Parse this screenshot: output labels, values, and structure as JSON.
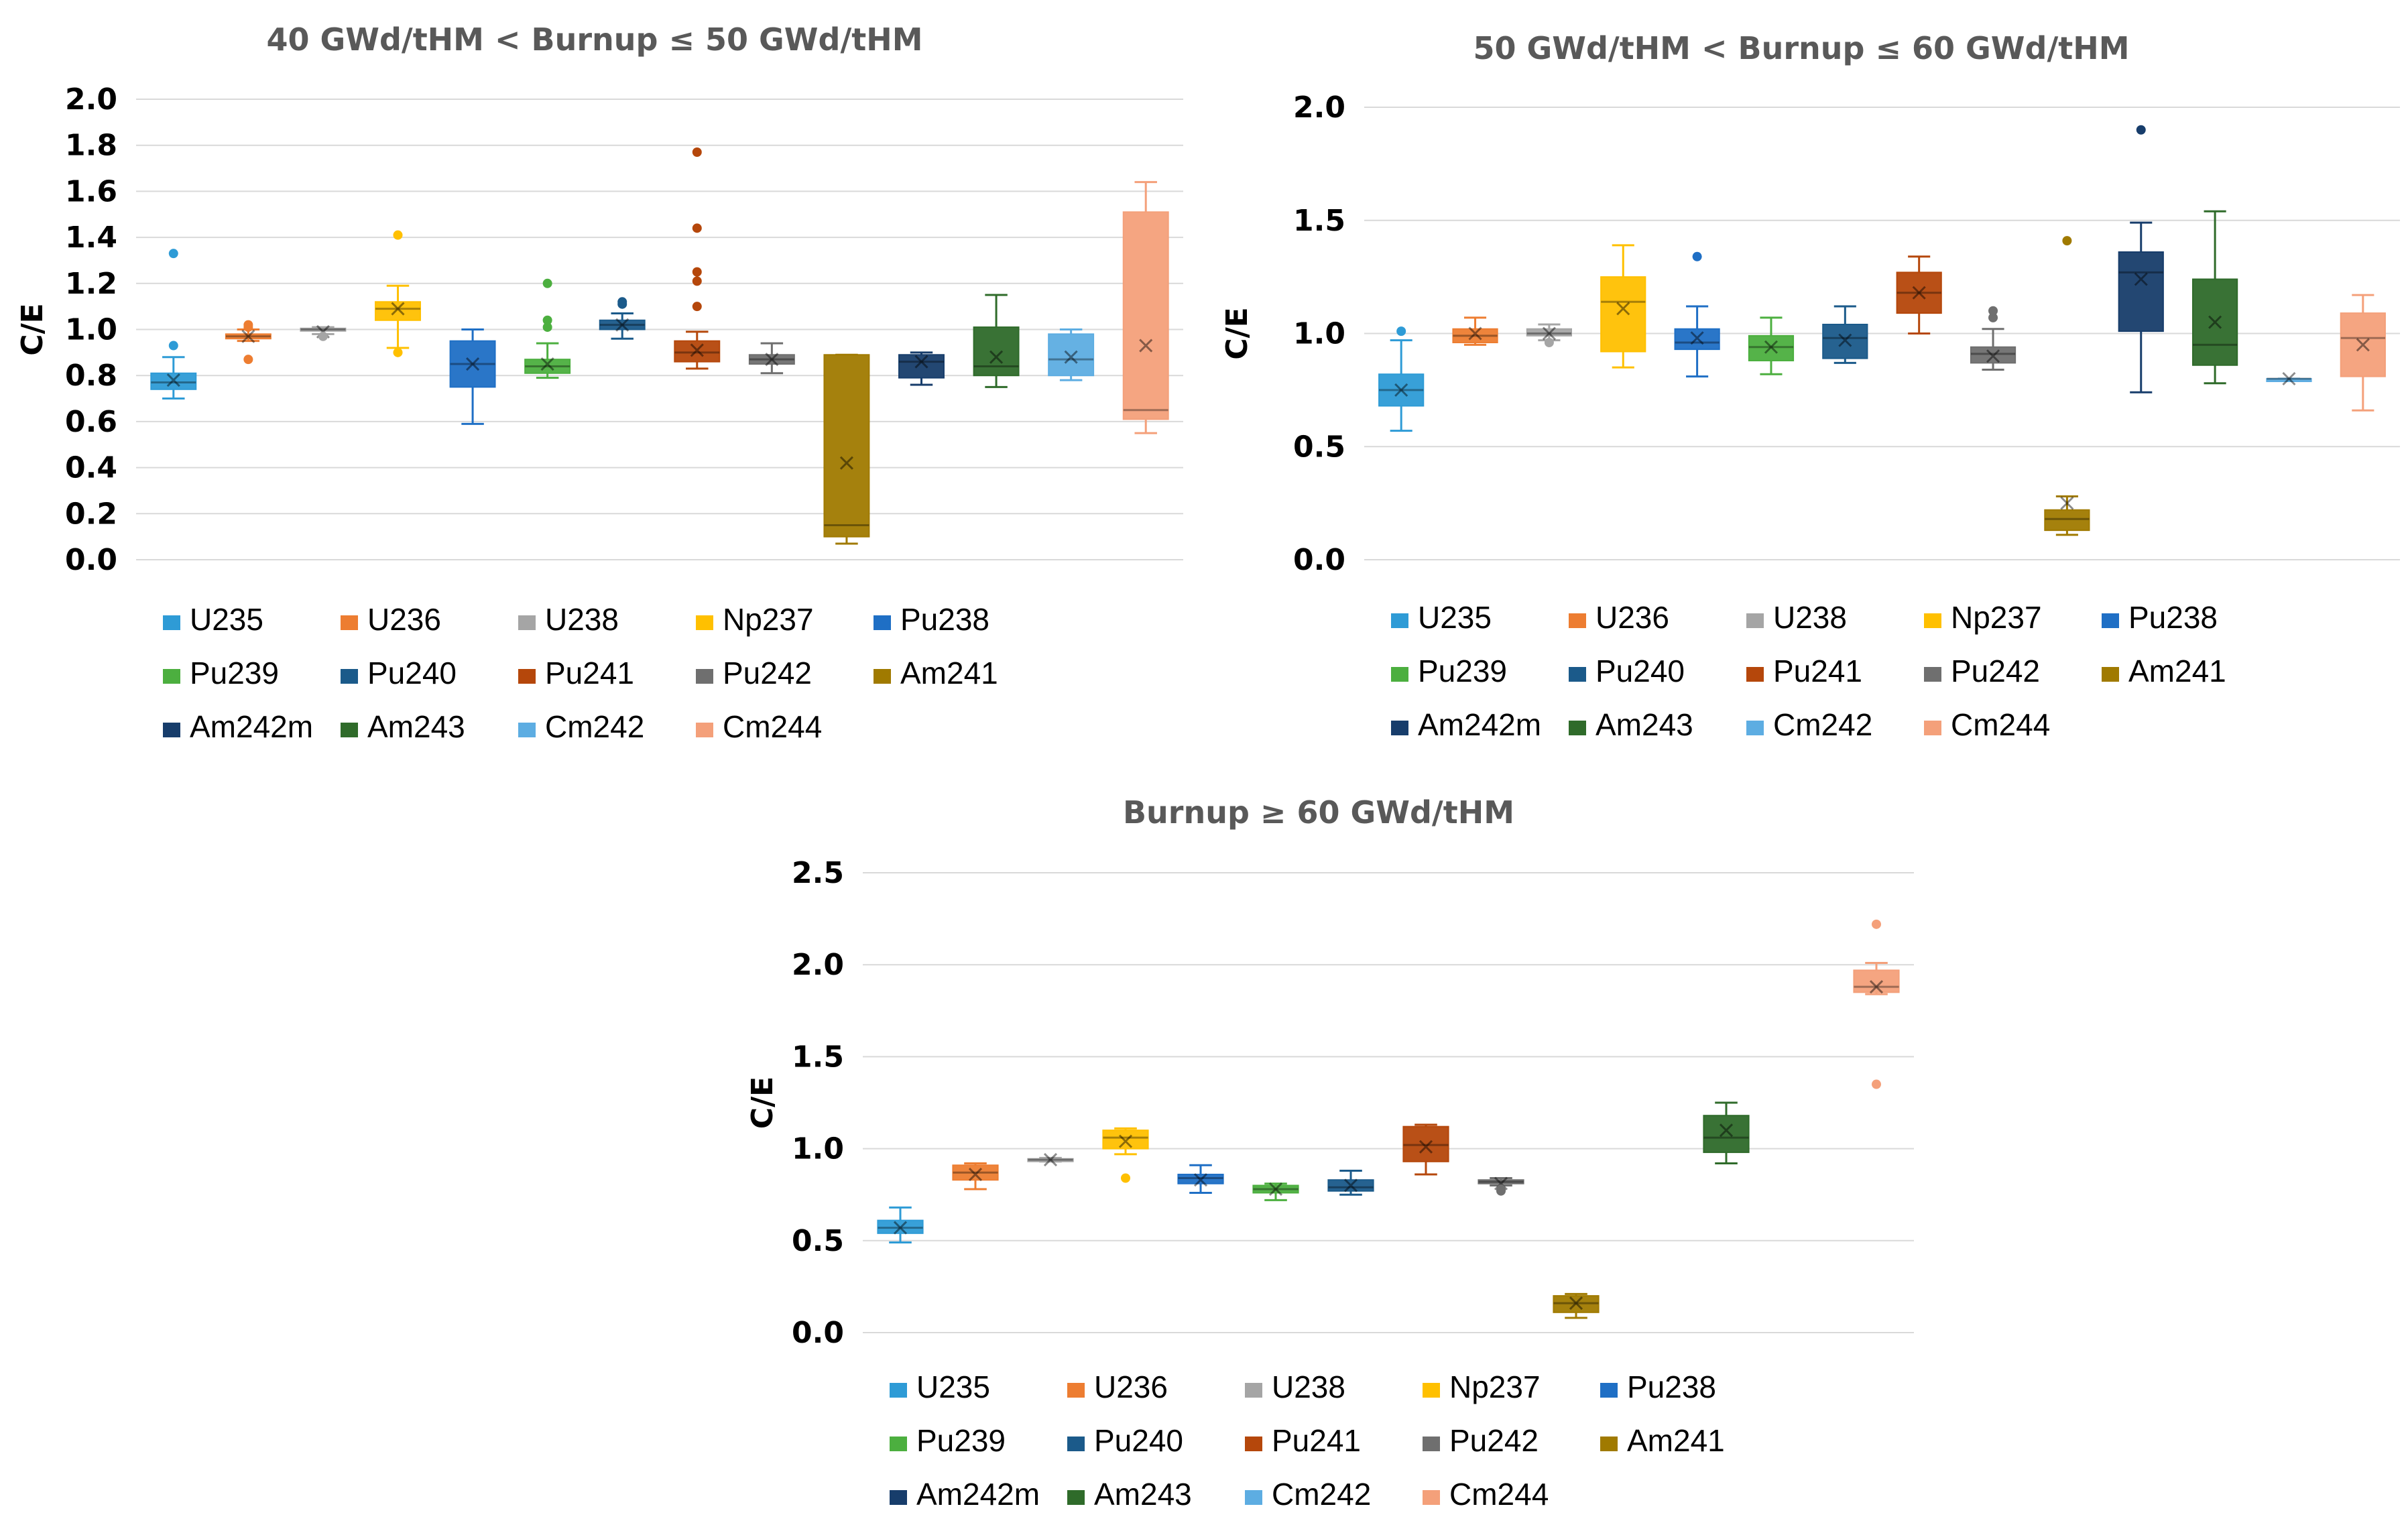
{
  "chart_data": [
    {
      "type": "box",
      "title": "40 GWd/tHM < Burnup ≤ 50 GWd/tHM",
      "ylabel": "C/E",
      "ylim": [
        0,
        2.0
      ],
      "yticks": [
        "0.0",
        "0.2",
        "0.4",
        "0.6",
        "0.8",
        "1.0",
        "1.2",
        "1.4",
        "1.6",
        "1.8",
        "2.0"
      ],
      "legend_position": "bottom",
      "series": [
        {
          "name": "U235",
          "color": "#2E9BD6",
          "min": 0.7,
          "q1": 0.74,
          "median": 0.77,
          "q3": 0.81,
          "max": 0.88,
          "mean": 0.78,
          "outliers": [
            0.93,
            1.33
          ]
        },
        {
          "name": "U236",
          "color": "#ED7D31",
          "min": 0.95,
          "q1": 0.96,
          "median": 0.97,
          "q3": 0.98,
          "max": 1.0,
          "mean": 0.97,
          "outliers": [
            0.87,
            1.01,
            1.02
          ]
        },
        {
          "name": "U238",
          "color": "#A5A5A5",
          "min": 0.98,
          "q1": 0.995,
          "median": 1.0,
          "q3": 1.005,
          "max": 1.01,
          "mean": 0.99,
          "outliers": [
            0.97
          ]
        },
        {
          "name": "Np237",
          "color": "#FFC000",
          "min": 0.92,
          "q1": 1.04,
          "median": 1.09,
          "q3": 1.12,
          "max": 1.19,
          "mean": 1.09,
          "outliers": [
            0.9,
            1.41
          ]
        },
        {
          "name": "Pu238",
          "color": "#1F6FC5",
          "min": 0.59,
          "q1": 0.75,
          "median": 0.85,
          "q3": 0.95,
          "max": 1.0,
          "mean": 0.85,
          "outliers": []
        },
        {
          "name": "Pu239",
          "color": "#4CAF3F",
          "min": 0.79,
          "q1": 0.81,
          "median": 0.84,
          "q3": 0.87,
          "max": 0.94,
          "mean": 0.85,
          "outliers": [
            1.01,
            1.04,
            1.2
          ]
        },
        {
          "name": "Pu240",
          "color": "#1B5A8A",
          "min": 0.96,
          "q1": 1.0,
          "median": 1.02,
          "q3": 1.04,
          "max": 1.07,
          "mean": 1.02,
          "outliers": [
            1.11,
            1.12
          ]
        },
        {
          "name": "Pu241",
          "color": "#B5470B",
          "min": 0.83,
          "q1": 0.86,
          "median": 0.9,
          "q3": 0.95,
          "max": 0.99,
          "mean": 0.91,
          "outliers": [
            1.1,
            1.21,
            1.25,
            1.44,
            1.77
          ]
        },
        {
          "name": "Pu242",
          "color": "#6F6F6F",
          "min": 0.81,
          "q1": 0.85,
          "median": 0.87,
          "q3": 0.89,
          "max": 0.94,
          "mean": 0.87,
          "outliers": []
        },
        {
          "name": "Am241",
          "color": "#A07A00",
          "min": 0.07,
          "q1": 0.1,
          "median": 0.15,
          "q3": 0.89,
          "max": 0.89,
          "mean": 0.42,
          "outliers": []
        },
        {
          "name": "Am242m",
          "color": "#173D6B",
          "min": 0.76,
          "q1": 0.79,
          "median": 0.86,
          "q3": 0.89,
          "max": 0.9,
          "mean": 0.86,
          "outliers": []
        },
        {
          "name": "Am243",
          "color": "#2F6B2A",
          "min": 0.75,
          "q1": 0.8,
          "median": 0.84,
          "q3": 1.01,
          "max": 1.15,
          "mean": 0.88,
          "outliers": []
        },
        {
          "name": "Cm242",
          "color": "#5DADE2",
          "min": 0.78,
          "q1": 0.8,
          "median": 0.87,
          "q3": 0.98,
          "max": 1.0,
          "mean": 0.88,
          "outliers": []
        },
        {
          "name": "Cm244",
          "color": "#F4A07A",
          "min": 0.55,
          "q1": 0.61,
          "median": 0.65,
          "q3": 1.51,
          "max": 1.64,
          "mean": 0.93,
          "outliers": []
        }
      ]
    },
    {
      "type": "box",
      "title": "50 GWd/tHM < Burnup ≤ 60 GWd/tHM",
      "ylabel": "C/E",
      "ylim": [
        0,
        2.0
      ],
      "yticks": [
        "0.0",
        "0.5",
        "1.0",
        "1.5",
        "2.0"
      ],
      "legend_position": "bottom",
      "series": [
        {
          "name": "U235",
          "color": "#2E9BD6",
          "min": 0.57,
          "q1": 0.68,
          "median": 0.75,
          "q3": 0.82,
          "max": 0.97,
          "mean": 0.75,
          "outliers": [
            1.01
          ]
        },
        {
          "name": "U236",
          "color": "#ED7D31",
          "min": 0.95,
          "q1": 0.96,
          "median": 0.99,
          "q3": 1.02,
          "max": 1.07,
          "mean": 1.0,
          "outliers": []
        },
        {
          "name": "U238",
          "color": "#A5A5A5",
          "min": 0.97,
          "q1": 0.99,
          "median": 1.0,
          "q3": 1.02,
          "max": 1.04,
          "mean": 1.0,
          "outliers": [
            0.96
          ]
        },
        {
          "name": "Np237",
          "color": "#FFC000",
          "min": 0.85,
          "q1": 0.92,
          "median": 1.14,
          "q3": 1.25,
          "max": 1.39,
          "mean": 1.11,
          "outliers": []
        },
        {
          "name": "Pu238",
          "color": "#1F6FC5",
          "min": 0.81,
          "q1": 0.93,
          "median": 0.96,
          "q3": 1.02,
          "max": 1.12,
          "mean": 0.98,
          "outliers": [
            1.34
          ]
        },
        {
          "name": "Pu239",
          "color": "#4CAF3F",
          "min": 0.82,
          "q1": 0.88,
          "median": 0.94,
          "q3": 0.99,
          "max": 1.07,
          "mean": 0.94,
          "outliers": []
        },
        {
          "name": "Pu240",
          "color": "#1B5A8A",
          "min": 0.87,
          "q1": 0.89,
          "median": 0.98,
          "q3": 1.04,
          "max": 1.12,
          "mean": 0.97,
          "outliers": []
        },
        {
          "name": "Pu241",
          "color": "#B5470B",
          "min": 1.0,
          "q1": 1.09,
          "median": 1.18,
          "q3": 1.27,
          "max": 1.34,
          "mean": 1.18,
          "outliers": []
        },
        {
          "name": "Pu242",
          "color": "#6F6F6F",
          "min": 0.84,
          "q1": 0.87,
          "median": 0.91,
          "q3": 0.94,
          "max": 1.02,
          "mean": 0.9,
          "outliers": [
            1.07,
            1.1
          ]
        },
        {
          "name": "Am241",
          "color": "#A07A00",
          "min": 0.11,
          "q1": 0.13,
          "median": 0.18,
          "q3": 0.22,
          "max": 0.28,
          "mean": 0.25,
          "outliers": [
            1.41
          ]
        },
        {
          "name": "Am242m",
          "color": "#173D6B",
          "min": 0.74,
          "q1": 1.01,
          "median": 1.27,
          "q3": 1.36,
          "max": 1.49,
          "mean": 1.24,
          "outliers": [
            1.9
          ]
        },
        {
          "name": "Am243",
          "color": "#2F6B2A",
          "min": 0.78,
          "q1": 0.86,
          "median": 0.95,
          "q3": 1.24,
          "max": 1.54,
          "mean": 1.05,
          "outliers": []
        },
        {
          "name": "Cm242",
          "color": "#5DADE2",
          "min": 0.8,
          "q1": 0.8,
          "median": 0.8,
          "q3": 0.8,
          "max": 0.8,
          "mean": 0.8,
          "outliers": []
        },
        {
          "name": "Cm244",
          "color": "#F4A07A",
          "min": 0.66,
          "q1": 0.81,
          "median": 0.98,
          "q3": 1.09,
          "max": 1.17,
          "mean": 0.95,
          "outliers": []
        }
      ]
    },
    {
      "type": "box",
      "title": "Burnup ≥ 60 GWd/tHM",
      "ylabel": "C/E",
      "ylim": [
        0,
        2.5
      ],
      "yticks": [
        "0.0",
        "0.5",
        "1.0",
        "1.5",
        "2.0",
        "2.5"
      ],
      "legend_position": "bottom",
      "series": [
        {
          "name": "U235",
          "color": "#2E9BD6",
          "min": 0.49,
          "q1": 0.54,
          "median": 0.57,
          "q3": 0.61,
          "max": 0.68,
          "mean": 0.57,
          "outliers": []
        },
        {
          "name": "U236",
          "color": "#ED7D31",
          "min": 0.78,
          "q1": 0.83,
          "median": 0.87,
          "q3": 0.91,
          "max": 0.92,
          "mean": 0.86,
          "outliers": []
        },
        {
          "name": "U238",
          "color": "#A5A5A5",
          "min": 0.93,
          "q1": 0.935,
          "median": 0.94,
          "q3": 0.945,
          "max": 0.95,
          "mean": 0.94,
          "outliers": []
        },
        {
          "name": "Np237",
          "color": "#FFC000",
          "min": 0.97,
          "q1": 1.0,
          "median": 1.06,
          "q3": 1.1,
          "max": 1.11,
          "mean": 1.04,
          "outliers": [
            0.84
          ]
        },
        {
          "name": "Pu238",
          "color": "#1F6FC5",
          "min": 0.76,
          "q1": 0.81,
          "median": 0.84,
          "q3": 0.86,
          "max": 0.91,
          "mean": 0.83,
          "outliers": []
        },
        {
          "name": "Pu239",
          "color": "#4CAF3F",
          "min": 0.72,
          "q1": 0.76,
          "median": 0.78,
          "q3": 0.8,
          "max": 0.81,
          "mean": 0.78,
          "outliers": []
        },
        {
          "name": "Pu240",
          "color": "#1B5A8A",
          "min": 0.75,
          "q1": 0.77,
          "median": 0.79,
          "q3": 0.83,
          "max": 0.88,
          "mean": 0.8,
          "outliers": []
        },
        {
          "name": "Pu241",
          "color": "#B5470B",
          "min": 0.86,
          "q1": 0.93,
          "median": 1.02,
          "q3": 1.12,
          "max": 1.13,
          "mean": 1.01,
          "outliers": []
        },
        {
          "name": "Pu242",
          "color": "#6F6F6F",
          "min": 0.8,
          "q1": 0.81,
          "median": 0.82,
          "q3": 0.83,
          "max": 0.84,
          "mean": 0.81,
          "outliers": [
            0.77,
            0.78
          ]
        },
        {
          "name": "Am241",
          "color": "#A07A00",
          "min": 0.08,
          "q1": 0.11,
          "median": 0.16,
          "q3": 0.2,
          "max": 0.21,
          "mean": 0.16,
          "outliers": []
        },
        {
          "name": "Am242m",
          "color": "#173D6B",
          "min": null,
          "q1": null,
          "median": null,
          "q3": null,
          "max": null,
          "mean": null,
          "outliers": []
        },
        {
          "name": "Am243",
          "color": "#2F6B2A",
          "min": 0.92,
          "q1": 0.98,
          "median": 1.06,
          "q3": 1.18,
          "max": 1.25,
          "mean": 1.1,
          "outliers": []
        },
        {
          "name": "Cm242",
          "color": "#5DADE2",
          "min": null,
          "q1": null,
          "median": null,
          "q3": null,
          "max": null,
          "mean": null,
          "outliers": []
        },
        {
          "name": "Cm244",
          "color": "#F4A07A",
          "min": 1.84,
          "q1": 1.85,
          "median": 1.88,
          "q3": 1.97,
          "max": 2.01,
          "mean": 1.88,
          "outliers": [
            1.35,
            2.22
          ]
        }
      ]
    }
  ]
}
